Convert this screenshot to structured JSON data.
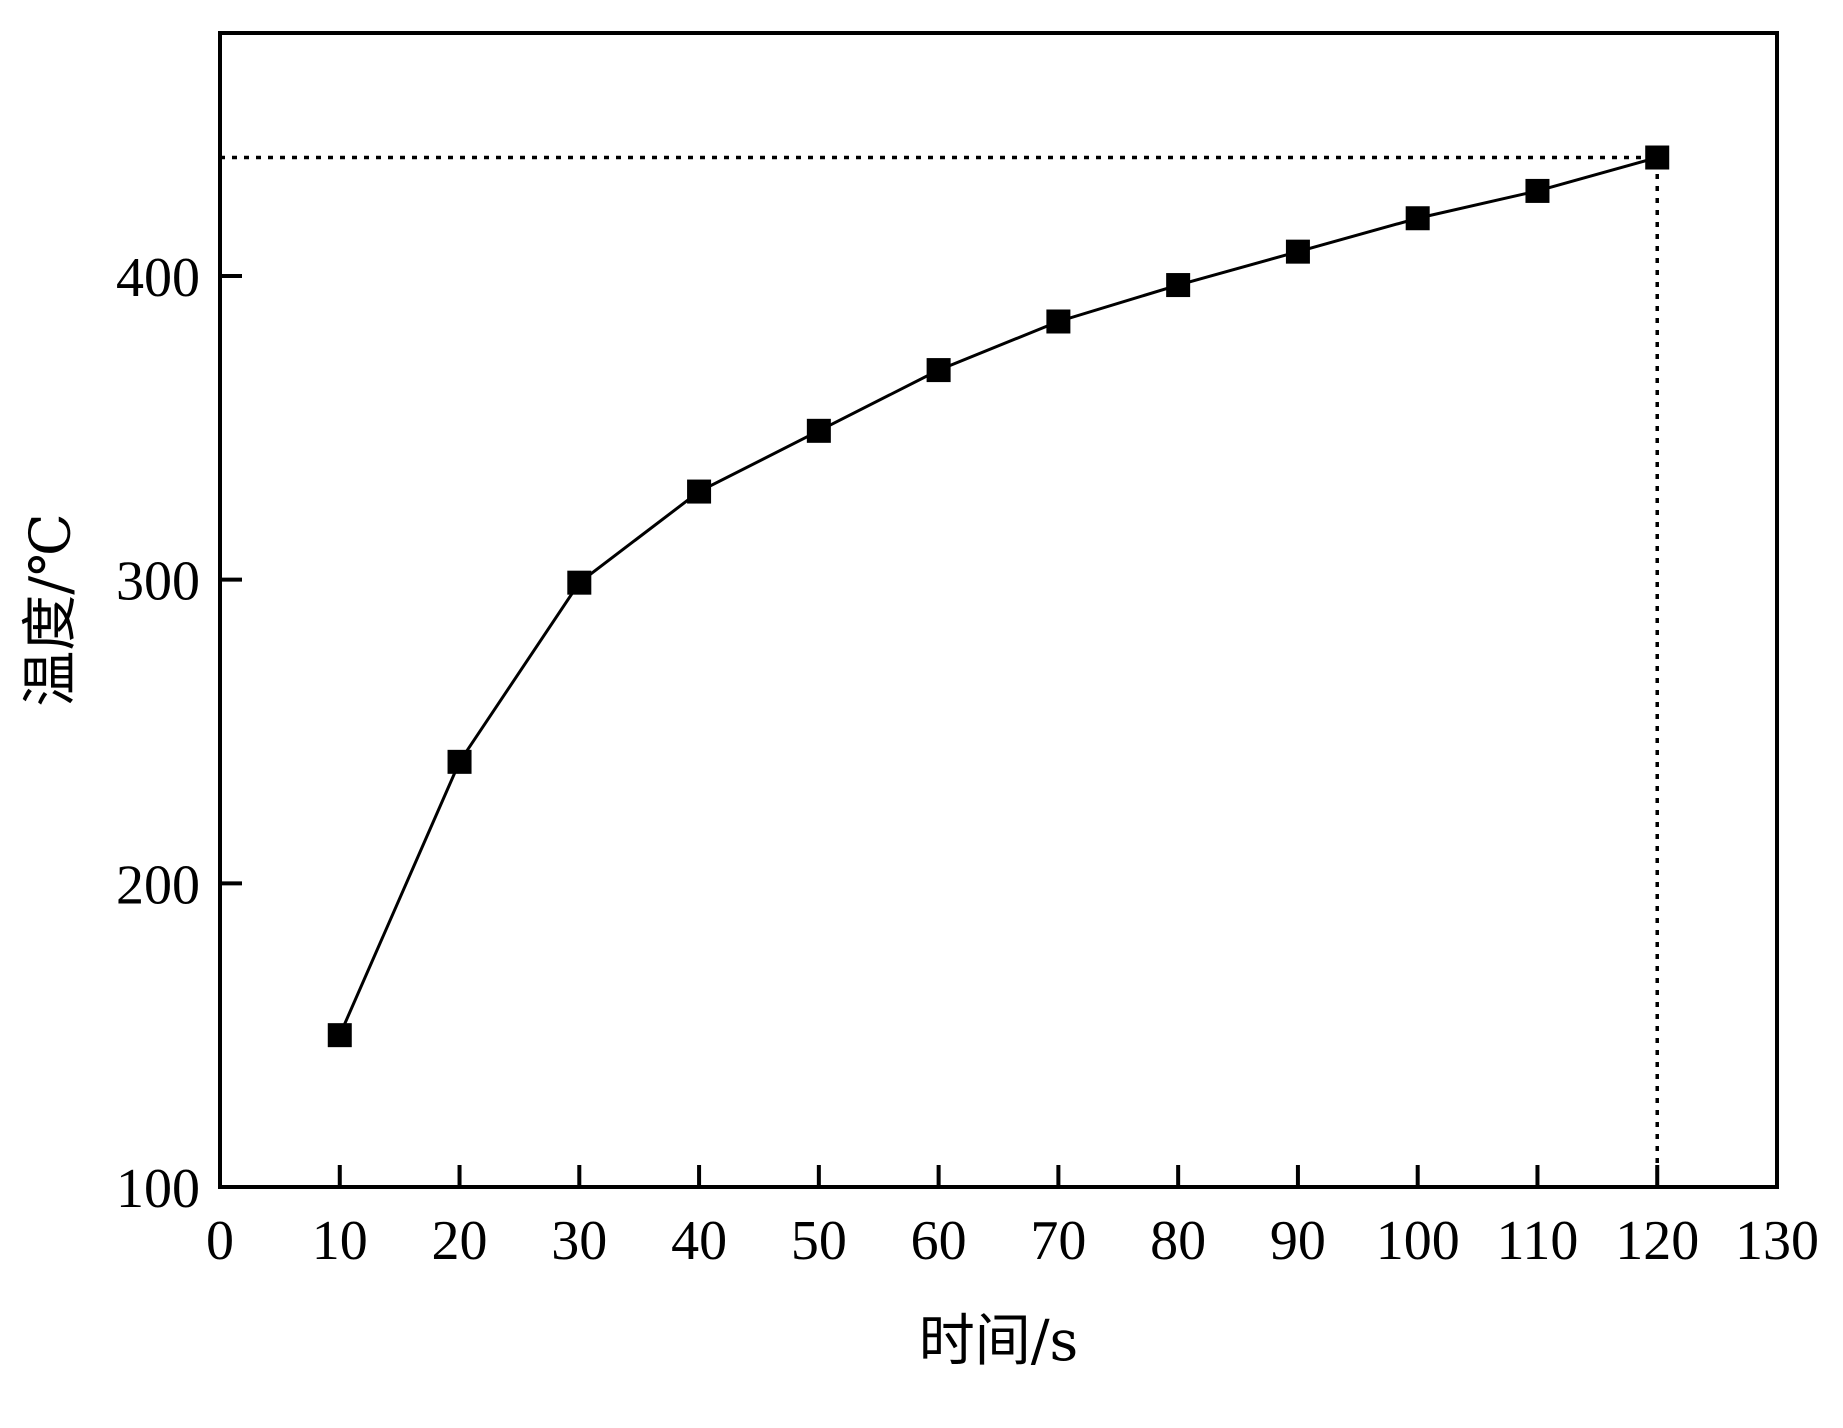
{
  "chart_data": {
    "type": "line",
    "title": "",
    "xlabel": "时间/s",
    "ylabel": "温度/℃",
    "xlim": [
      0,
      130
    ],
    "ylim": [
      100,
      480
    ],
    "xticks": [
      0,
      10,
      20,
      30,
      40,
      50,
      60,
      70,
      80,
      90,
      100,
      110,
      120,
      130
    ],
    "yticks": [
      100,
      200,
      300,
      400
    ],
    "grid": false,
    "legend": "none",
    "series": [
      {
        "marker": "square",
        "color": "#000000",
        "x": [
          10,
          20,
          30,
          40,
          50,
          60,
          70,
          80,
          90,
          100,
          110,
          120
        ],
        "y": [
          150,
          240,
          299,
          329,
          349,
          369,
          385,
          397,
          408,
          419,
          428,
          439
        ]
      }
    ],
    "reference_lines": [
      {
        "style": "dotted",
        "orientation": "horizontal",
        "y": 439,
        "x_range": [
          0,
          120
        ]
      },
      {
        "style": "dotted",
        "orientation": "vertical",
        "x": 120,
        "y_range": [
          100,
          439
        ]
      }
    ]
  }
}
